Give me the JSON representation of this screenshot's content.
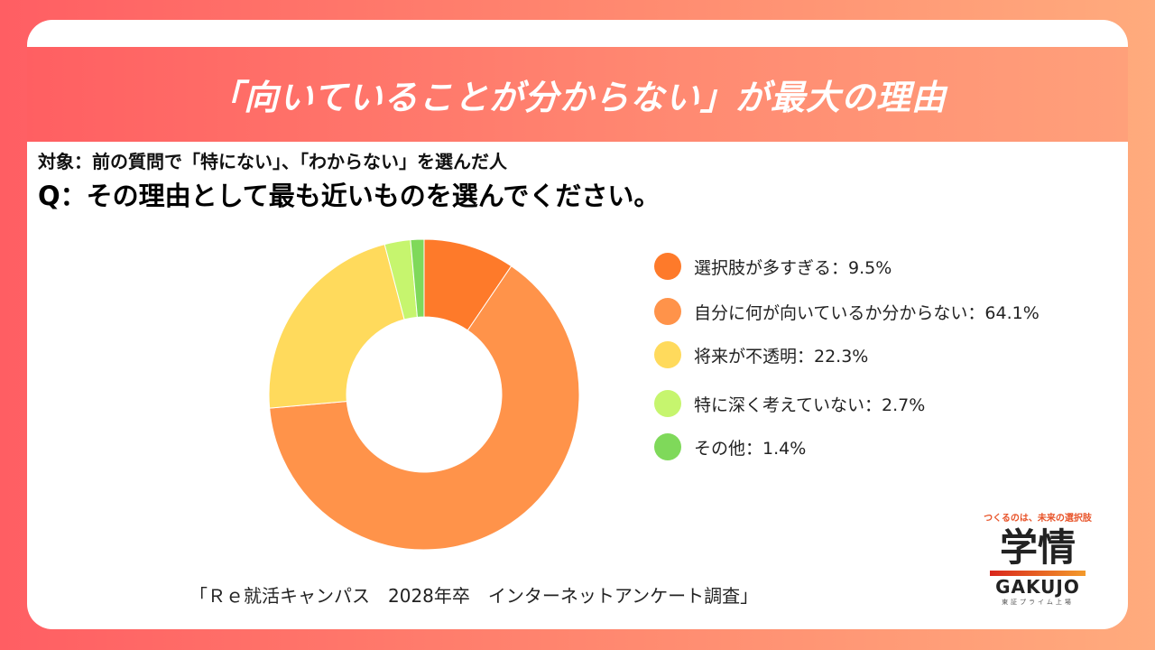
{
  "banner": {
    "title": "「向いていることが分からない」が最大の理由"
  },
  "header": {
    "target": "対象：前の質問で「特にない」、「わからない」を選んだ人",
    "question": "Q：その理由として最も近いものを選んでください。"
  },
  "chart_data": {
    "type": "pie",
    "variant": "donut",
    "title": "",
    "unit": "%",
    "categories": [
      "選択肢が多すぎる",
      "自分に何が向いているか分からない",
      "将来が不透明",
      "特に深く考えていない",
      "その他"
    ],
    "values": [
      9.5,
      64.1,
      22.3,
      2.7,
      1.4
    ],
    "colors": [
      "#fe7a2a",
      "#ff934a",
      "#ffda5c",
      "#c6f56e",
      "#7fd95a"
    ],
    "legend_labels": [
      "選択肢が多すぎる：9.5%",
      "自分に何が向いているか分からない：64.1%",
      "将来が不透明：22.3%",
      "特に深く考えていない：2.7%",
      "その他：1.4%"
    ],
    "legend": "right"
  },
  "footer": {
    "source": "「Ｒｅ就活キャンパス　2028年卒　インターネットアンケート調査」"
  },
  "logo": {
    "tagline": "つくるのは、未来の選択肢",
    "kanji": "学情",
    "latin": "GAKUJO",
    "sub": "東証プライム上場"
  }
}
